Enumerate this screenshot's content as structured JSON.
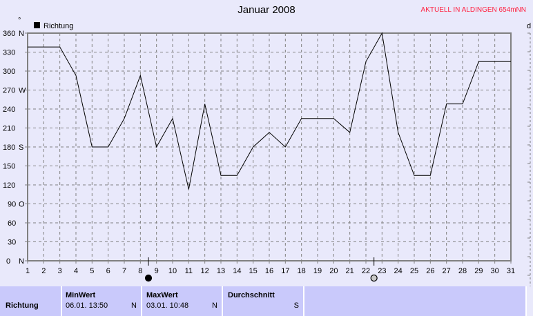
{
  "header": {
    "title": "Januar 2008",
    "station": "AKTUELL IN ALDINGEN 654mNN",
    "degree_symbol": "°",
    "right_axis_label": "d"
  },
  "chart_data": {
    "type": "line",
    "title": "Januar 2008",
    "legend": "top-left",
    "series": [
      {
        "name": "Richtung",
        "color": "#000000",
        "x": [
          1,
          2,
          3,
          4,
          5,
          6,
          7,
          8,
          9,
          10,
          11,
          12,
          13,
          14,
          15,
          16,
          17,
          18,
          19,
          20,
          21,
          22,
          23,
          24,
          25,
          26,
          27,
          28,
          29,
          30,
          31
        ],
        "values": [
          338,
          338,
          338,
          293,
          180,
          180,
          225,
          293,
          180,
          225,
          113,
          248,
          135,
          135,
          180,
          203,
          180,
          225,
          225,
          225,
          203,
          315,
          360,
          203,
          135,
          135,
          248,
          248,
          315,
          315,
          315
        ]
      }
    ],
    "xlim": [
      1,
      31
    ],
    "ylim": [
      0,
      360
    ],
    "yticks": [
      {
        "v": 0,
        "l": "0",
        "d": "N"
      },
      {
        "v": 30,
        "l": "30",
        "d": ""
      },
      {
        "v": 60,
        "l": "60",
        "d": ""
      },
      {
        "v": 90,
        "l": "90",
        "d": "O"
      },
      {
        "v": 120,
        "l": "120",
        "d": ""
      },
      {
        "v": 150,
        "l": "150",
        "d": ""
      },
      {
        "v": 180,
        "l": "180",
        "d": "S"
      },
      {
        "v": 210,
        "l": "210",
        "d": ""
      },
      {
        "v": 240,
        "l": "240",
        "d": ""
      },
      {
        "v": 270,
        "l": "270",
        "d": "W"
      },
      {
        "v": 300,
        "l": "300",
        "d": ""
      },
      {
        "v": 330,
        "l": "330",
        "d": ""
      },
      {
        "v": 360,
        "l": "360",
        "d": "N"
      }
    ],
    "grid": true,
    "moon_phases": [
      {
        "day": 8.5,
        "phase": "new-moon"
      },
      {
        "day": 22.5,
        "phase": "full-moon"
      }
    ]
  },
  "table": {
    "row_label": "Richtung",
    "columns": [
      {
        "header": "MinWert",
        "date": "06.01.  13:50",
        "value": "N"
      },
      {
        "header": "MaxWert",
        "date": "03.01.  10:48",
        "value": "N"
      },
      {
        "header": "Durchschnitt",
        "date": "",
        "value": "S"
      }
    ]
  }
}
